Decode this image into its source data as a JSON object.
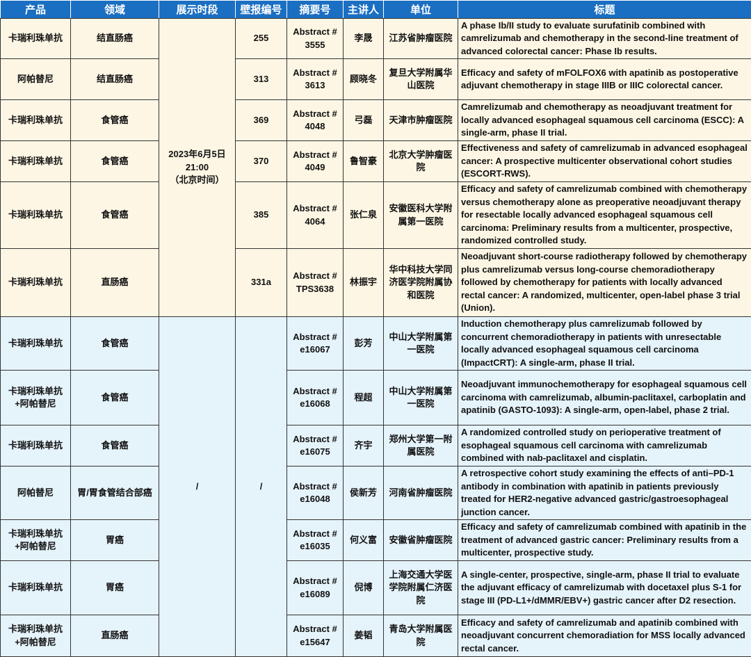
{
  "headers": [
    "产品",
    "领域",
    "展示时段",
    "壁报编号",
    "摘要号",
    "主讲人",
    "单位",
    "标题"
  ],
  "group1": {
    "time": "2023年6月5日\n21:00\n（北京时间）",
    "color": "#fdf6e4"
  },
  "group2": {
    "time": "/",
    "poster": "/",
    "color": "#e5f3fb"
  },
  "header_color": "#1b6fc2",
  "rows": [
    {
      "product": "卡瑞利珠单抗",
      "area": "结直肠癌",
      "poster": "255",
      "abstract": "Abstract #\n3555",
      "speaker": "李晟",
      "unit": "江苏省肿瘤医院",
      "title": "A phase Ib/II study to evaluate surufatinib combined with camrelizumab and chemotherapy in the second-line treatment of advanced colorectal cancer: Phase Ib results."
    },
    {
      "product": "阿帕替尼",
      "area": "结直肠癌",
      "poster": "313",
      "abstract": "Abstract #\n3613",
      "speaker": "顾晓冬",
      "unit": "复旦大学附属华山医院",
      "title": "Efficacy and safety of mFOLFOX6 with apatinib as postoperative adjuvant chemotherapy in stage IIIB or IIIC colorectal cancer."
    },
    {
      "product": "卡瑞利珠单抗",
      "area": "食管癌",
      "poster": "369",
      "abstract": "Abstract #\n4048",
      "speaker": "弓磊",
      "unit": "天津市肿瘤医院",
      "title": "Camrelizumab and chemotherapy as neoadjuvant treatment for locally advanced esophageal squamous cell carcinoma (ESCC): A single-arm, phase II trial."
    },
    {
      "product": "卡瑞利珠单抗",
      "area": "食管癌",
      "poster": "370",
      "abstract": "Abstract #\n4049",
      "speaker": "鲁智豪",
      "unit": "北京大学肿瘤医院",
      "title": "Effectiveness and safety of camrelizumab in advanced esophageal cancer: A prospective multicenter observational cohort studies (ESCORT-RWS)."
    },
    {
      "product": "卡瑞利珠单抗",
      "area": "食管癌",
      "poster": "385",
      "abstract": "Abstract #\n4064",
      "speaker": "张仁泉",
      "unit": "安徽医科大学附属第一医院",
      "title": "Efficacy and safety of camrelizumab combined with chemotherapy versus chemotherapy alone as preoperative neoadjuvant therapy for resectable locally advanced esophageal squamous cell carcinoma: Preliminary results from a multicenter, prospective, randomized controlled study."
    },
    {
      "product": "卡瑞利珠单抗",
      "area": "直肠癌",
      "poster": "331a",
      "abstract": "Abstract #\nTPS3638",
      "speaker": "林振宇",
      "unit": "华中科技大学同济医学院附属协和医院",
      "title": "Neoadjuvant short-course radiotherapy followed by chemotherapy plus camrelizumab versus long-course chemoradiotherapy followed by chemotherapy for patients with locally advanced rectal cancer: A randomized, multicenter, open-label phase 3 trial (Union)."
    },
    {
      "product": "卡瑞利珠单抗",
      "area": "食管癌",
      "abstract": "Abstract #\ne16067",
      "speaker": "彭芳",
      "unit": "中山大学附属第一医院",
      "title": "Induction chemotherapy plus camrelizumab followed by concurrent chemoradiotherapy in patients with unresectable locally advanced esophageal squamous cell carcinoma (ImpactCRT): A single-arm, phase II trial."
    },
    {
      "product": "卡瑞利珠单抗\n+阿帕替尼",
      "area": "食管癌",
      "abstract": "Abstract #\ne16068",
      "speaker": "程超",
      "unit": "中山大学附属第一医院",
      "title": "Neoadjuvant immunochemotherapy for esophageal squamous cell carcinoma with camrelizumab, albumin-paclitaxel, carboplatin and apatinib (GASTO-1093): A single-arm, open-label, phase 2 trial."
    },
    {
      "product": "卡瑞利珠单抗",
      "area": "食管癌",
      "abstract": "Abstract #\ne16075",
      "speaker": "齐宇",
      "unit": "郑州大学第一附属医院",
      "title": "A randomized controlled study on perioperative treatment of esophageal squamous cell carcinoma with camrelizumab combined with nab-paclitaxel and cisplatin."
    },
    {
      "product": "阿帕替尼",
      "area": "胃/胃食管结合部癌",
      "abstract": "Abstract #\ne16048",
      "speaker": "侯新芳",
      "unit": "河南省肿瘤医院",
      "title": "A retrospective cohort study examining the effects of anti–PD-1 antibody in combination with apatinib in patients previously treated for HER2-negative advanced gastric/gastroesophageal junction cancer."
    },
    {
      "product": "卡瑞利珠单抗\n+阿帕替尼",
      "area": "胃癌",
      "abstract": "Abstract #\ne16035",
      "speaker": "何义富",
      "unit": "安徽省肿瘤医院",
      "title": "Efficacy and safety of camrelizumab combined with apatinib in the treatment of advanced gastric cancer: Preliminary results from a multicenter, prospective study."
    },
    {
      "product": "卡瑞利珠单抗",
      "area": "胃癌",
      "abstract": "Abstract #\ne16089",
      "speaker": "倪博",
      "unit": "上海交通大学医学院附属仁济医院",
      "title": "A single-center, prospective, single-arm, phase II trial to evaluate the adjuvant efficacy of camrelizumab with docetaxel plus S-1 for stage III (PD-L1+/dMMR/EBV+) gastric cancer after D2 resection."
    },
    {
      "product": "卡瑞利珠单抗\n+阿帕替尼",
      "area": "直肠癌",
      "abstract": "Abstract #\ne15647",
      "speaker": "姜韬",
      "unit": "青岛大学附属医院",
      "title": "Efficacy and safety of camrelizumab and apatinib combined with neoadjuvant concurrent chemoradiation for MSS locally advanced rectal cancer."
    }
  ]
}
